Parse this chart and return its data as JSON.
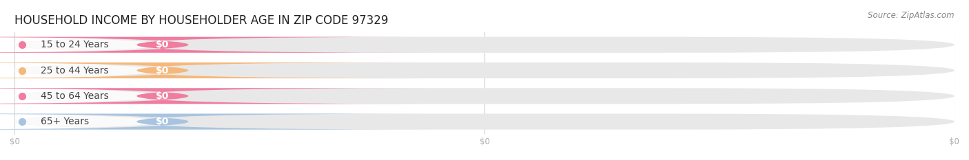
{
  "title": "HOUSEHOLD INCOME BY HOUSEHOLDER AGE IN ZIP CODE 97329",
  "source": "Source: ZipAtlas.com",
  "categories": [
    "15 to 24 Years",
    "25 to 44 Years",
    "45 to 64 Years",
    "65+ Years"
  ],
  "values": [
    0,
    0,
    0,
    0
  ],
  "bar_colors": [
    "#f07ca0",
    "#f5b87a",
    "#f07ca0",
    "#a8c4e0"
  ],
  "bar_bg_color": "#e8e8e8",
  "label_bg_color": "#f5f5f5",
  "background_color": "#ffffff",
  "title_fontsize": 12,
  "source_fontsize": 8.5,
  "label_fontsize": 10,
  "value_fontsize": 10,
  "tick_fontsize": 8.5,
  "tick_color": "#aaaaaa",
  "grid_color": "#d0d0d0",
  "label_color": "#444444",
  "value_color": "#ffffff",
  "n_xticks": 3,
  "xtick_positions": [
    0.0,
    0.5,
    1.0
  ],
  "xtick_labels": [
    "$0",
    "$0",
    "$0"
  ]
}
